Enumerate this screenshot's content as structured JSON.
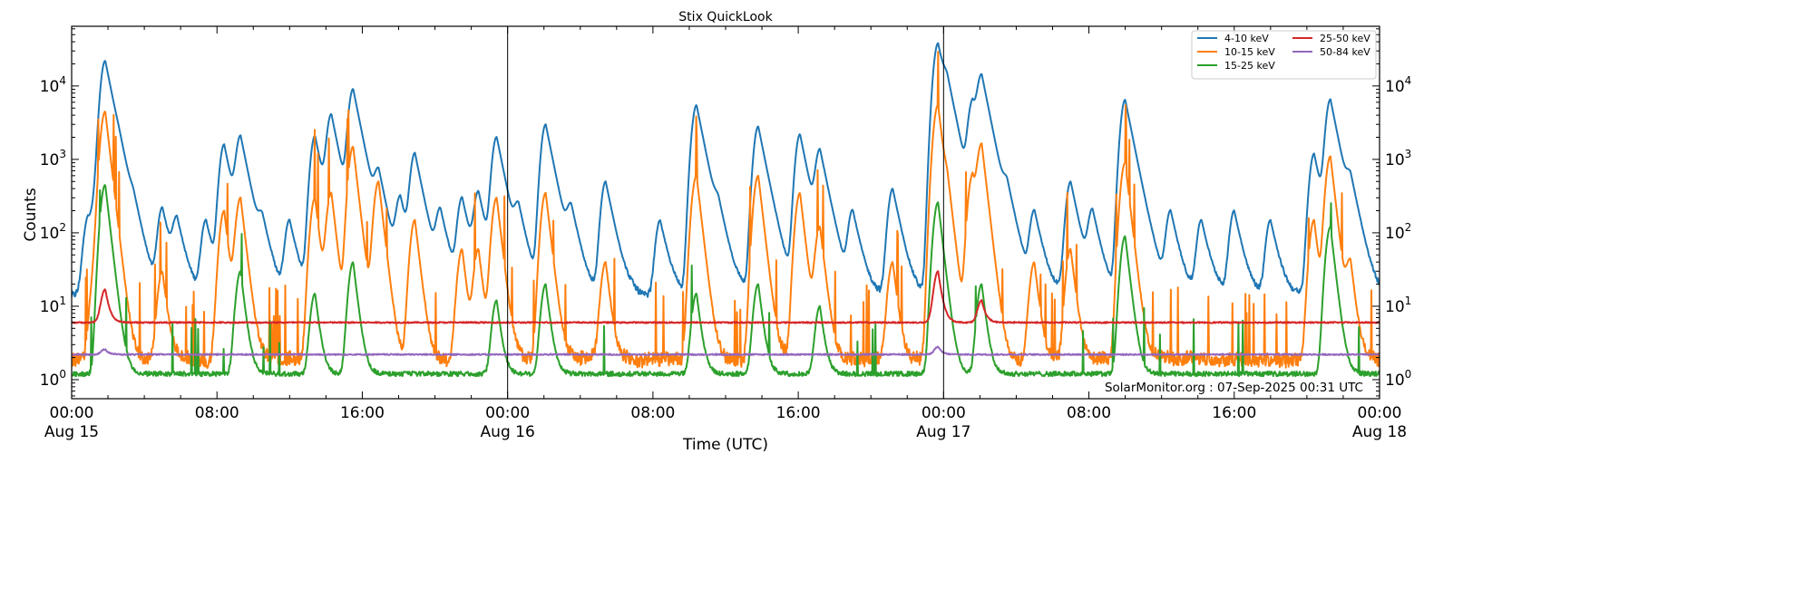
{
  "chart_data": {
    "type": "line",
    "title": "Stix QuickLook",
    "xlabel": "Time (UTC)",
    "ylabel": "Counts",
    "yscale": "log",
    "xlim": [
      "2025-08-15T00:00",
      "2025-08-18T00:00"
    ],
    "ylim": [
      0.55,
      65000
    ],
    "grid": false,
    "legend_placement": "top-right",
    "x_ticks": [
      {
        "label": "00:00",
        "sub": "Aug 15"
      },
      {
        "label": "08:00",
        "sub": ""
      },
      {
        "label": "16:00",
        "sub": ""
      },
      {
        "label": "00:00",
        "sub": "Aug 16"
      },
      {
        "label": "08:00",
        "sub": ""
      },
      {
        "label": "16:00",
        "sub": ""
      },
      {
        "label": "00:00",
        "sub": "Aug 17"
      },
      {
        "label": "08:00",
        "sub": ""
      },
      {
        "label": "16:00",
        "sub": ""
      },
      {
        "label": "00:00",
        "sub": "Aug 18"
      }
    ],
    "y_ticks": [
      {
        "base": "10",
        "exp": "0"
      },
      {
        "base": "10",
        "exp": "1"
      },
      {
        "base": "10",
        "exp": "2"
      },
      {
        "base": "10",
        "exp": "3"
      },
      {
        "base": "10",
        "exp": "4"
      }
    ],
    "day_boundaries": [
      "2025-08-16T00:00",
      "2025-08-17T00:00"
    ],
    "annotation": "SolarMonitor.org : 07-Sep-2025 00:31 UTC",
    "series": [
      {
        "name": "4-10 keV",
        "color": "#1f77b4",
        "baseline": 14,
        "peaks_hours_counts": [
          [
            0.9,
            150
          ],
          [
            1.3,
            200
          ],
          [
            1.85,
            22000
          ],
          [
            2.6,
            200
          ],
          [
            3.4,
            120
          ],
          [
            5.0,
            220
          ],
          [
            5.8,
            150
          ],
          [
            7.4,
            150
          ],
          [
            8.4,
            1600
          ],
          [
            9.3,
            2000
          ],
          [
            10.5,
            120
          ],
          [
            12.0,
            150
          ],
          [
            13.4,
            2100
          ],
          [
            14.3,
            4000
          ],
          [
            15.5,
            9000
          ],
          [
            16.9,
            600
          ],
          [
            18.1,
            300
          ],
          [
            18.9,
            1200
          ],
          [
            20.3,
            200
          ],
          [
            21.5,
            300
          ],
          [
            22.4,
            350
          ],
          [
            23.4,
            2000
          ],
          [
            24.6,
            200
          ],
          [
            26.1,
            3000
          ],
          [
            27.5,
            200
          ],
          [
            29.4,
            500
          ],
          [
            32.4,
            150
          ],
          [
            34.4,
            5500
          ],
          [
            35.6,
            150
          ],
          [
            37.8,
            2800
          ],
          [
            40.1,
            2200
          ],
          [
            41.2,
            1300
          ],
          [
            43.0,
            200
          ],
          [
            45.2,
            400
          ],
          [
            47.7,
            38000
          ],
          [
            48.2,
            6000
          ],
          [
            49.6,
            6000
          ],
          [
            50.1,
            13000
          ],
          [
            51.5,
            300
          ],
          [
            53.0,
            200
          ],
          [
            55.0,
            500
          ],
          [
            56.2,
            200
          ],
          [
            58.0,
            6500
          ],
          [
            60.5,
            200
          ],
          [
            62.2,
            150
          ],
          [
            64.0,
            200
          ],
          [
            66.0,
            150
          ],
          [
            68.4,
            1200
          ],
          [
            69.3,
            6500
          ],
          [
            70.4,
            400
          ]
        ]
      },
      {
        "name": "10-15 keV",
        "color": "#ff7f0e",
        "baseline": 1.9,
        "peaks_hours_counts": [
          [
            1.85,
            4500
          ],
          [
            1.3,
            30
          ],
          [
            5.0,
            30
          ],
          [
            8.4,
            200
          ],
          [
            9.3,
            300
          ],
          [
            13.4,
            300
          ],
          [
            14.3,
            350
          ],
          [
            15.5,
            1500
          ],
          [
            16.9,
            500
          ],
          [
            18.9,
            150
          ],
          [
            21.5,
            60
          ],
          [
            22.4,
            60
          ],
          [
            23.4,
            300
          ],
          [
            26.1,
            350
          ],
          [
            29.4,
            40
          ],
          [
            34.4,
            600
          ],
          [
            37.8,
            600
          ],
          [
            40.1,
            350
          ],
          [
            41.2,
            120
          ],
          [
            45.2,
            40
          ],
          [
            47.7,
            5500
          ],
          [
            48.2,
            300
          ],
          [
            49.6,
            600
          ],
          [
            50.1,
            1600
          ],
          [
            53.0,
            40
          ],
          [
            55.0,
            60
          ],
          [
            58.0,
            900
          ],
          [
            68.4,
            150
          ],
          [
            69.3,
            1100
          ],
          [
            70.4,
            40
          ]
        ]
      },
      {
        "name": "15-25 keV",
        "color": "#2ca02c",
        "baseline": 1.2,
        "peaks_hours_counts": [
          [
            1.85,
            450
          ],
          [
            9.3,
            30
          ],
          [
            13.4,
            15
          ],
          [
            15.5,
            40
          ],
          [
            23.4,
            12
          ],
          [
            26.1,
            20
          ],
          [
            34.4,
            15
          ],
          [
            37.8,
            20
          ],
          [
            41.2,
            10
          ],
          [
            47.7,
            260
          ],
          [
            50.1,
            20
          ],
          [
            58.0,
            90
          ],
          [
            69.3,
            120
          ]
        ]
      },
      {
        "name": "25-50 keV",
        "color": "#d62728",
        "baseline": 6,
        "peaks_hours_counts": [
          [
            1.85,
            17
          ],
          [
            47.7,
            30
          ],
          [
            50.1,
            12
          ]
        ]
      },
      {
        "name": "50-84 keV",
        "color": "#9467bd",
        "baseline": 2.2,
        "peaks_hours_counts": [
          [
            1.85,
            2.6
          ],
          [
            47.7,
            2.8
          ]
        ]
      }
    ]
  }
}
